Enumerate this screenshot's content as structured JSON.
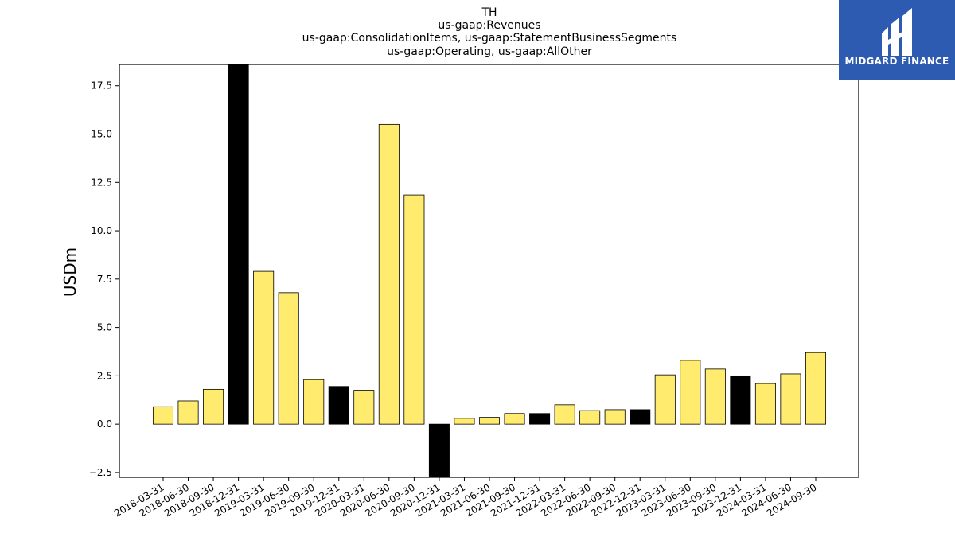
{
  "logo": {
    "text": "MIDGARD FINANCE",
    "background": "#2d5bb1",
    "icon": "midgard-logo-icon"
  },
  "chart_data": {
    "type": "bar",
    "title": [
      "TH",
      "us-gaap:Revenues",
      "us-gaap:ConsolidationItems, us-gaap:StatementBusinessSegments",
      "us-gaap:Operating, us-gaap:AllOther"
    ],
    "xlabel": "",
    "ylabel": "USDm",
    "ylim": [
      -2.75,
      18.6
    ],
    "yticks": [
      -2.5,
      0.0,
      2.5,
      5.0,
      7.5,
      10.0,
      12.5,
      15.0,
      17.5
    ],
    "ytick_labels": [
      "−2.5",
      "0.0",
      "2.5",
      "5.0",
      "7.5",
      "10.0",
      "12.5",
      "15.0",
      "17.5"
    ],
    "grid": false,
    "colors": {
      "quarter": "#ffec6e",
      "year_end": "#000000",
      "edge": "#000000"
    },
    "categories": [
      "2018-03-31",
      "2018-06-30",
      "2018-09-30",
      "2018-12-31",
      "2019-03-31",
      "2019-06-30",
      "2019-09-30",
      "2019-12-31",
      "2020-03-31",
      "2020-06-30",
      "2020-09-30",
      "2020-12-31",
      "2021-03-31",
      "2021-06-30",
      "2021-09-30",
      "2021-12-31",
      "2022-03-31",
      "2022-06-30",
      "2022-09-30",
      "2022-12-31",
      "2023-03-31",
      "2023-06-30",
      "2023-09-30",
      "2023-12-31",
      "2024-03-31",
      "2024-06-30",
      "2024-09-30"
    ],
    "values": [
      0.9,
      1.2,
      1.8,
      18.6,
      7.9,
      6.8,
      2.3,
      1.95,
      1.75,
      15.5,
      11.85,
      -2.75,
      0.3,
      0.35,
      0.55,
      0.55,
      1.0,
      0.7,
      0.75,
      0.75,
      2.55,
      3.3,
      2.85,
      2.5,
      2.1,
      2.6,
      3.7
    ]
  }
}
